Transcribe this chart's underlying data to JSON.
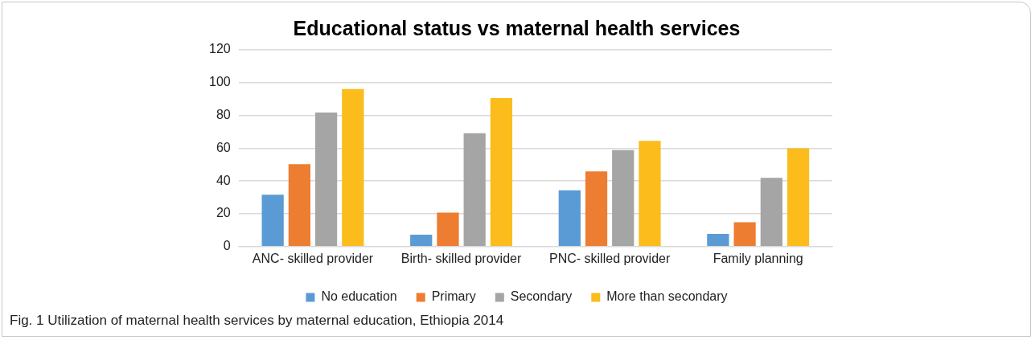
{
  "chart_data": {
    "type": "bar",
    "title": "Educational status vs maternal health services",
    "categories": [
      "ANC- skilled provider",
      "Birth- skilled provider",
      "PNC- skilled provider",
      "Family planning"
    ],
    "series": [
      {
        "name": "No education",
        "color": "#5b9bd5",
        "values": [
          31.6,
          7.2,
          34.3,
          7.7
        ]
      },
      {
        "name": "Primary",
        "color": "#ed7d31",
        "values": [
          50.3,
          20.7,
          45.8,
          14.8
        ]
      },
      {
        "name": "Secondary",
        "color": "#a5a5a5",
        "values": [
          81.8,
          69.2,
          58.8,
          41.9
        ]
      },
      {
        "name": "More than secondary",
        "color": "#fbbc1c",
        "values": [
          96.1,
          90.6,
          64.5,
          59.9
        ]
      }
    ],
    "ylim": [
      0,
      120
    ],
    "yticks": [
      0,
      20,
      40,
      60,
      80,
      100,
      120
    ],
    "grid": "y",
    "legend": "bottom",
    "annotations": [
      "Fig. 1 Utilization of maternal health services by maternal education, Ethiopia 2014"
    ]
  }
}
